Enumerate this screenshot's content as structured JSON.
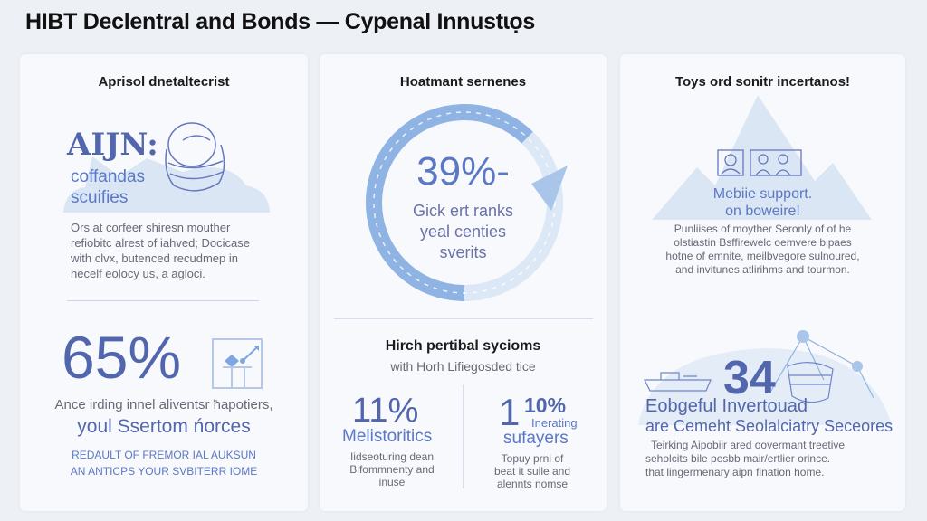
{
  "header": {
    "title": "HIBT Declentral and Bonds — Cypenal Innustɩọs"
  },
  "left": {
    "title": "Aprisol dnetaltecrist",
    "hero_label": "AIJN:",
    "hero_sub": [
      "coffandas",
      "scuifies"
    ],
    "body": [
      "Ors at corfeer shiresn mouther",
      "refiobitc alrest of iahved; Docicase",
      "with clvx, butenced recudmep in",
      "hecelf eolocy us, a agloci."
    ],
    "stat": "65%",
    "stat_line1": "Ance irding innel aliventsr ħapotiers,",
    "stat_line2": "youl Ssertom ńorces",
    "caps": [
      "REDAULT OF FREMOR IAL AUKSUN",
      "AN ANTICPS YOUR SVBITERR IOME"
    ]
  },
  "middle": {
    "title": "Hoatmant sernenes",
    "ring_value": "39%-",
    "ring_fill_percent": 39,
    "ring_text": [
      "Gick ert ranks",
      "yeal centies",
      "sverits"
    ],
    "section_title": "Hirch pertibal sycioms",
    "section_sub": "with Horh Lifiegosded tice",
    "stat_a": {
      "value": "11%",
      "label": "Melistoritics",
      "body": [
        "Iidseoturing dean",
        "Bifommnenty and",
        "inuse"
      ]
    },
    "stat_b": {
      "big": "1",
      "value": "10%",
      "tag": "Inerating",
      "label": "sufayers",
      "body": [
        "Topuy prni of",
        "beat it suile and",
        "alennts nomse"
      ]
    }
  },
  "right": {
    "title": "Toys ord sonitr incertanos!",
    "badge": [
      "Mebiie support.",
      "on boweire!"
    ],
    "body": [
      "Punliises of moyther Seronly of of he",
      "olstiastin Bsffirewelc oemvere bipaes",
      "hotne of emnite, meilbvegore sulnoured,",
      "and invitunes atlirihms and tourmon."
    ],
    "stat": "34",
    "stat_line1": "Eobgeful Invertouad",
    "stat_line2": "are Cemeht Seolalciatry Seceores",
    "body2": [
      "Teirking Aipobiir ared oovermant treetive",
      "seholcits bile pesbb mair/ertlier orince.",
      "that lingermenary aipn fination home."
    ]
  },
  "colors": {
    "accent": "#5266ad",
    "ring": "#8fb3e2",
    "pale": "#dbe6f5",
    "background": "#edf0f5"
  }
}
